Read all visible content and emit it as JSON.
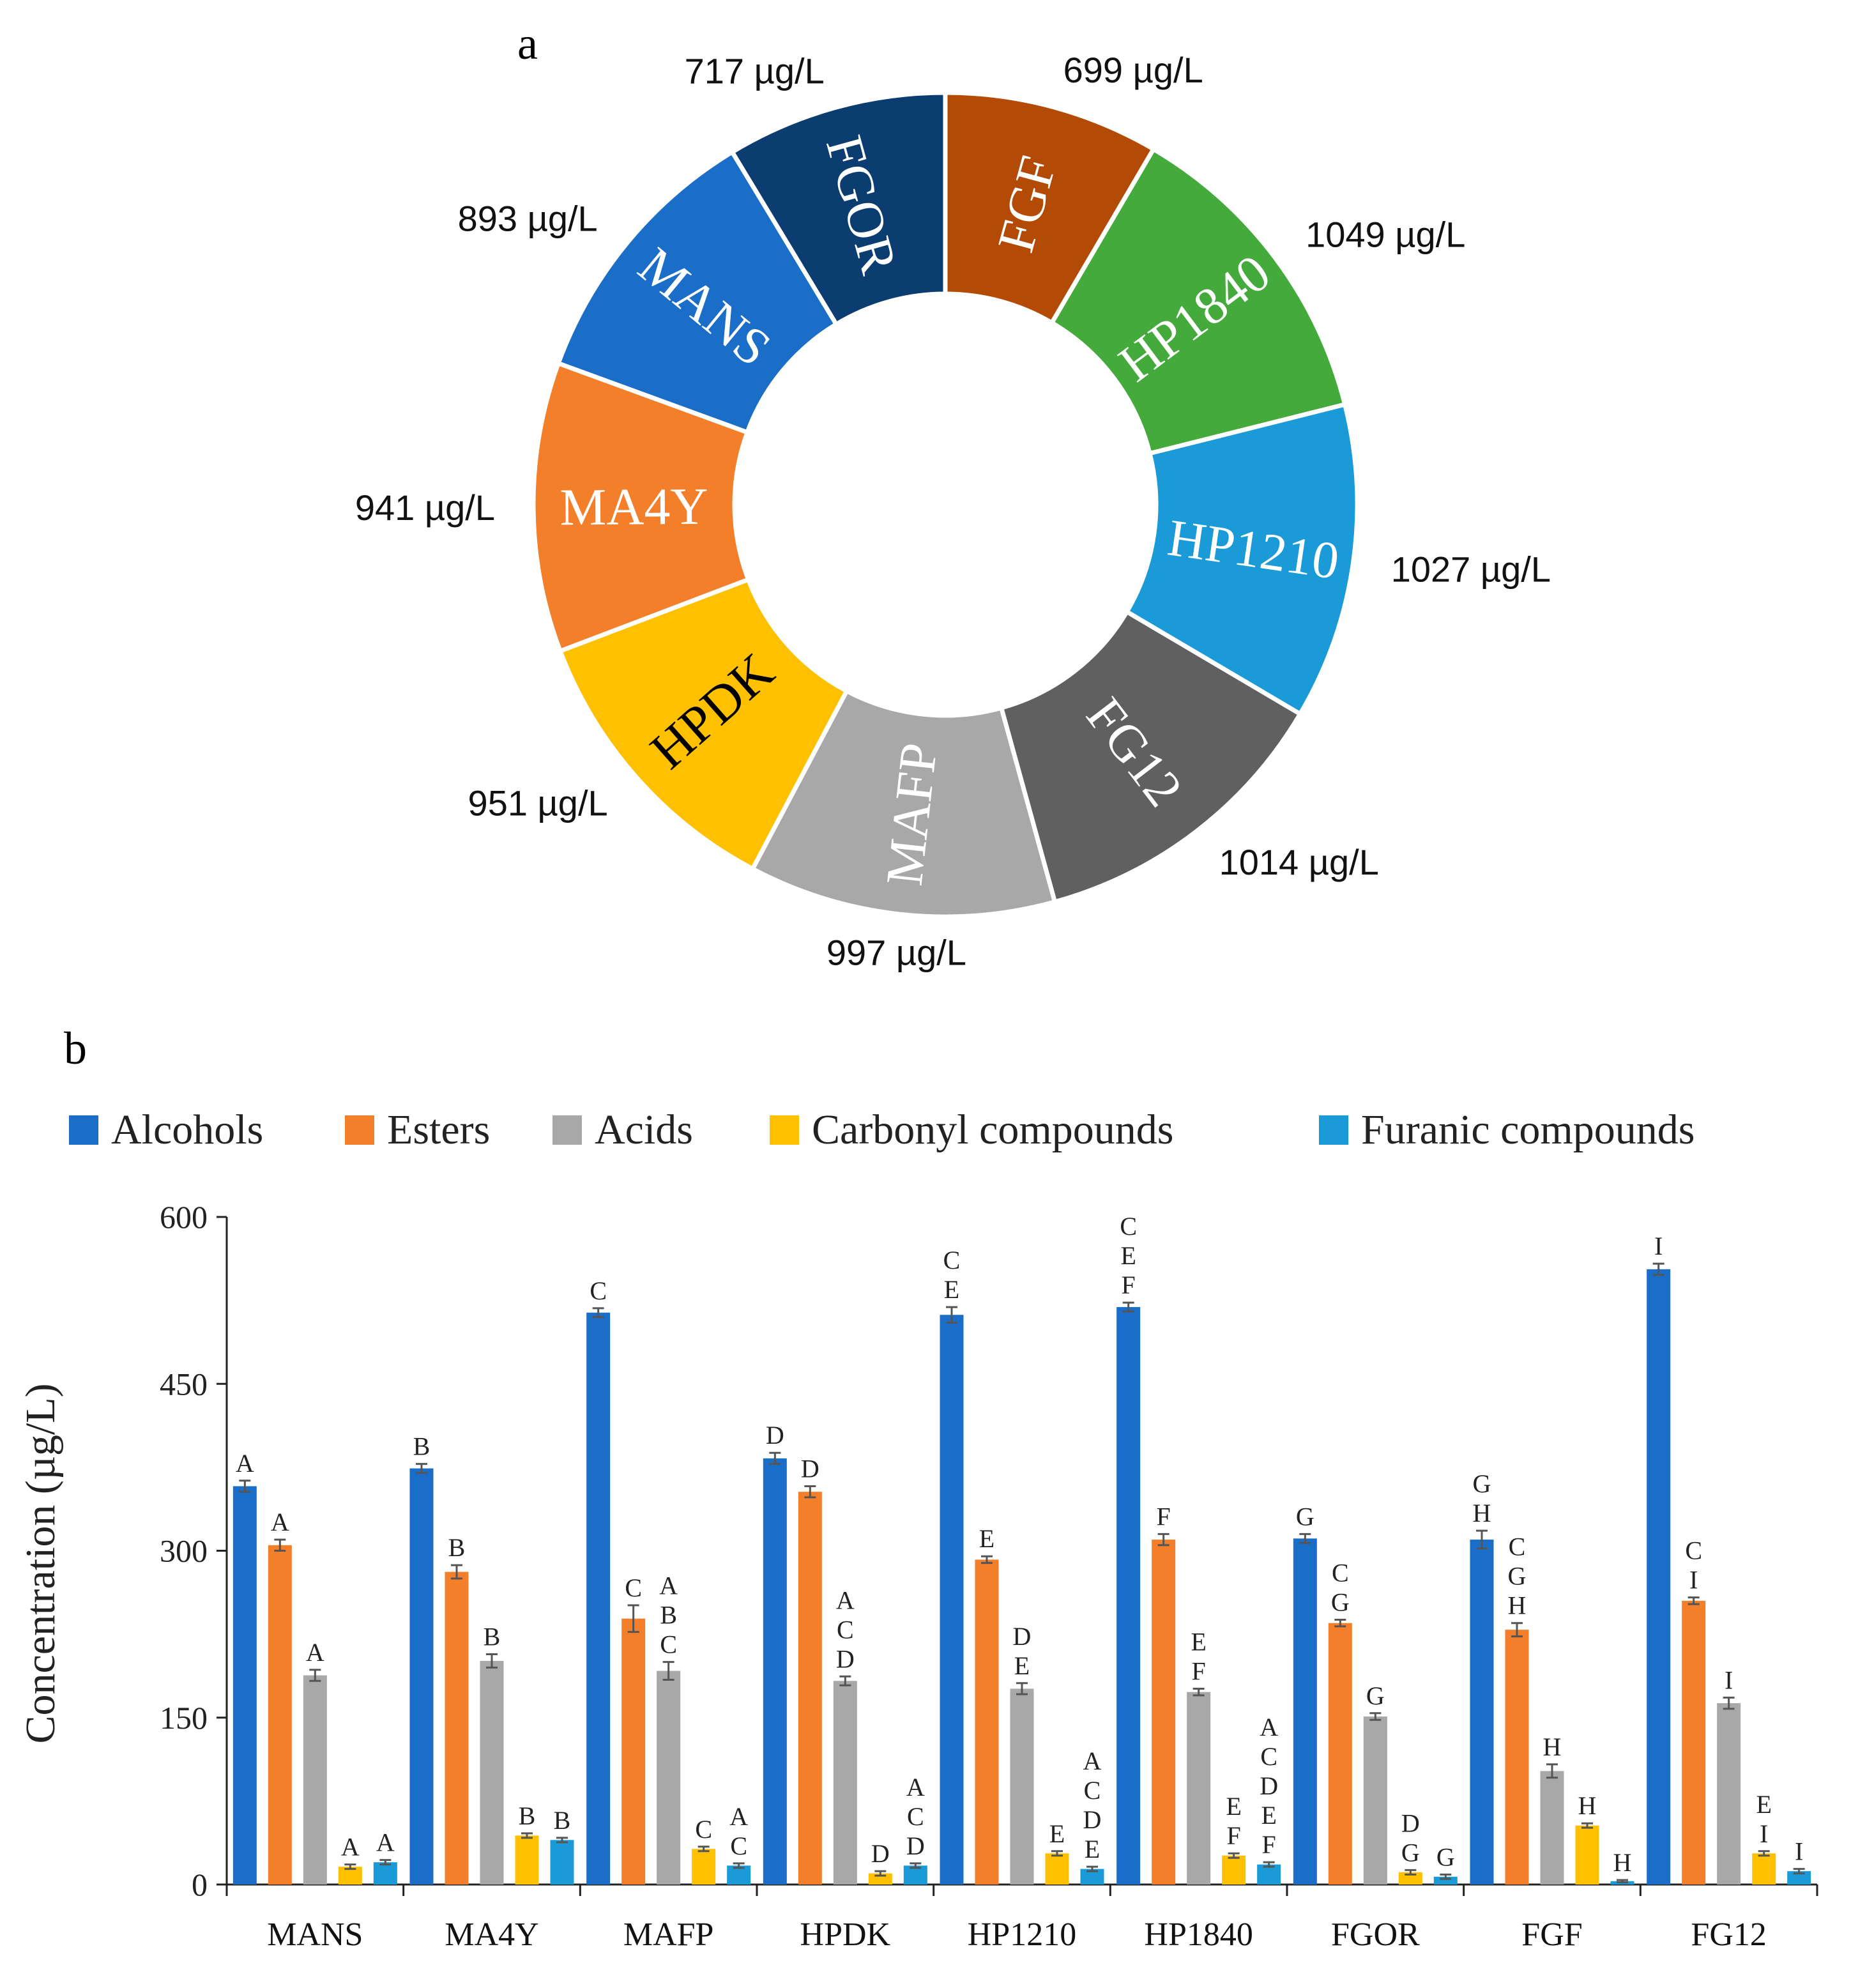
{
  "chart_data": [
    {
      "type": "pie",
      "variant": "donut",
      "panel_label": "a",
      "unit": "µg/L",
      "slices": [
        {
          "name": "FGF",
          "value": 699,
          "label": "699 µg/L",
          "color": "#b34a05",
          "text_color": "#ffffff"
        },
        {
          "name": "HP1840",
          "value": 1049,
          "label": "1049 µg/L",
          "color": "#44aa3c",
          "text_color": "#ffffff"
        },
        {
          "name": "HP1210",
          "value": 1027,
          "label": "1027 µg/L",
          "color": "#1a9bd7",
          "text_color": "#ffffff"
        },
        {
          "name": "FG12",
          "value": 1014,
          "label": "1014 µg/L",
          "color": "#606060",
          "text_color": "#ffffff"
        },
        {
          "name": "MAFP",
          "value": 997,
          "label": "997 µg/L",
          "color": "#a8a8a8",
          "text_color": "#ffffff"
        },
        {
          "name": "HPDK",
          "value": 951,
          "label": "951 µg/L",
          "color": "#ffc000",
          "text_color": "#000000"
        },
        {
          "name": "MA4Y",
          "value": 941,
          "label": "941 µg/L",
          "color": "#f47f2a",
          "text_color": "#ffffff"
        },
        {
          "name": "MANS",
          "value": 893,
          "label": "893 µg/L",
          "color": "#1a6ec8",
          "text_color": "#ffffff"
        },
        {
          "name": "FGOR",
          "value": 717,
          "label": "717 µg/L",
          "color": "#0b3d70",
          "text_color": "#ffffff"
        }
      ]
    },
    {
      "type": "bar",
      "panel_label": "b",
      "ylabel": "Concentration (µg/L)",
      "ylim": [
        0,
        600
      ],
      "yticks": [
        0,
        150,
        300,
        450,
        600
      ],
      "categories": [
        "MANS",
        "MA4Y",
        "MAFP",
        "HPDK",
        "HP1210",
        "HP1840",
        "FGOR",
        "FGF",
        "FG12"
      ],
      "series": [
        {
          "name": "Alcohols",
          "color": "#1a6ec8",
          "values": [
            358,
            374,
            514,
            383,
            512,
            519,
            311,
            310,
            553
          ],
          "errors": [
            5,
            4,
            4,
            5,
            7,
            4,
            4,
            8,
            5
          ],
          "letters": [
            [
              "A"
            ],
            [
              "B"
            ],
            [
              "C"
            ],
            [
              "D"
            ],
            [
              "C",
              "E"
            ],
            [
              "C",
              "E",
              "F"
            ],
            [
              "G"
            ],
            [
              "G",
              "H"
            ],
            [
              "I"
            ]
          ]
        },
        {
          "name": "Esters",
          "color": "#f47f2a",
          "values": [
            305,
            281,
            239,
            353,
            292,
            310,
            235,
            229,
            255
          ],
          "errors": [
            5,
            6,
            12,
            5,
            3,
            5,
            3,
            6,
            3
          ],
          "letters": [
            [
              "A"
            ],
            [
              "B"
            ],
            [
              "C"
            ],
            [
              "D"
            ],
            [
              "E"
            ],
            [
              "F"
            ],
            [
              "C",
              "G"
            ],
            [
              "C",
              "G",
              "H"
            ],
            [
              "C",
              "I"
            ]
          ]
        },
        {
          "name": "Acids",
          "color": "#a8a8a8",
          "values": [
            188,
            201,
            192,
            183,
            176,
            173,
            151,
            102,
            163
          ],
          "errors": [
            5,
            6,
            8,
            4,
            5,
            3,
            3,
            6,
            5
          ],
          "letters": [
            [
              "A"
            ],
            [
              "B"
            ],
            [
              "A",
              "B",
              "C"
            ],
            [
              "A",
              "C",
              "D"
            ],
            [
              "D",
              "E"
            ],
            [
              "E",
              "F"
            ],
            [
              "G"
            ],
            [
              "H"
            ],
            [
              "I"
            ]
          ]
        },
        {
          "name": "Carbonyl compounds",
          "color": "#ffc000",
          "values": [
            16,
            44,
            32,
            10,
            28,
            26,
            11,
            53,
            28
          ],
          "errors": [
            2,
            2,
            2,
            2,
            2,
            2,
            2,
            2,
            2
          ],
          "letters": [
            [
              "A"
            ],
            [
              "B"
            ],
            [
              "C"
            ],
            [
              "D"
            ],
            [
              "E"
            ],
            [
              "E",
              "F"
            ],
            [
              "D",
              "G"
            ],
            [
              "H"
            ],
            [
              "E",
              "I"
            ]
          ]
        },
        {
          "name": "Furanic compounds",
          "color": "#1a9bd7",
          "values": [
            20,
            40,
            17,
            17,
            14,
            18,
            7,
            3,
            12
          ],
          "errors": [
            2,
            2,
            2,
            2,
            2,
            2,
            2,
            1,
            2
          ],
          "letters": [
            [
              "A"
            ],
            [
              "B"
            ],
            [
              "A",
              "C"
            ],
            [
              "A",
              "C",
              "D"
            ],
            [
              "A",
              "C",
              "D",
              "E"
            ],
            [
              "A",
              "C",
              "D",
              "E",
              "F"
            ],
            [
              "G"
            ],
            [
              "H"
            ],
            [
              "I"
            ]
          ]
        }
      ]
    }
  ]
}
